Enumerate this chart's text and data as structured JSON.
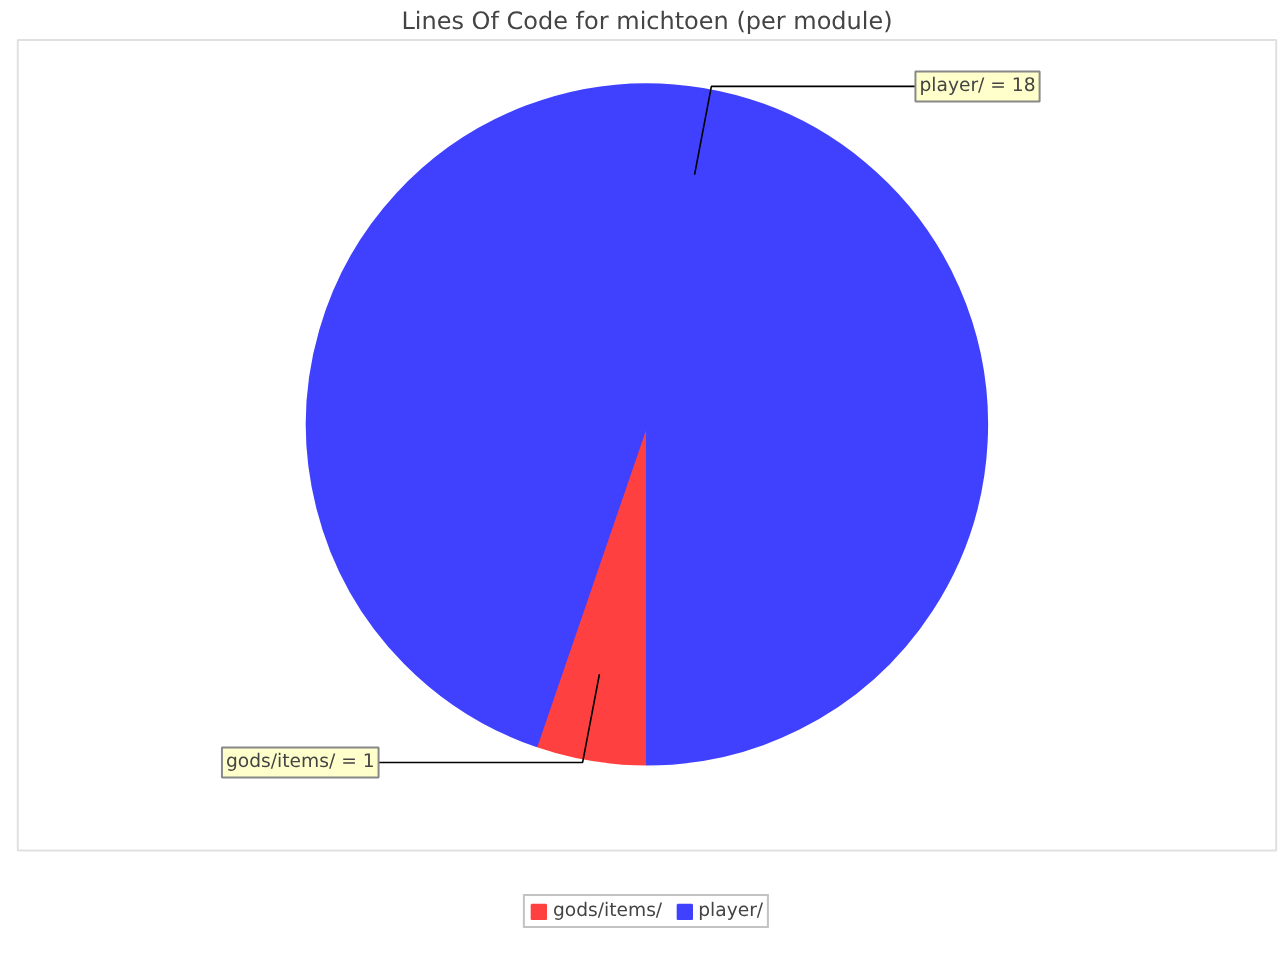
{
  "chart_data": {
    "type": "pie",
    "title": "Lines Of Code for michtoen (per module)",
    "categories": [
      "gods/items/",
      "player/"
    ],
    "values": [
      1,
      18
    ],
    "colors": [
      "#ff4040",
      "#4040ff"
    ],
    "value_labels": [
      "gods/items/ = 1",
      "player/ = 18"
    ],
    "legend": "bottom"
  }
}
